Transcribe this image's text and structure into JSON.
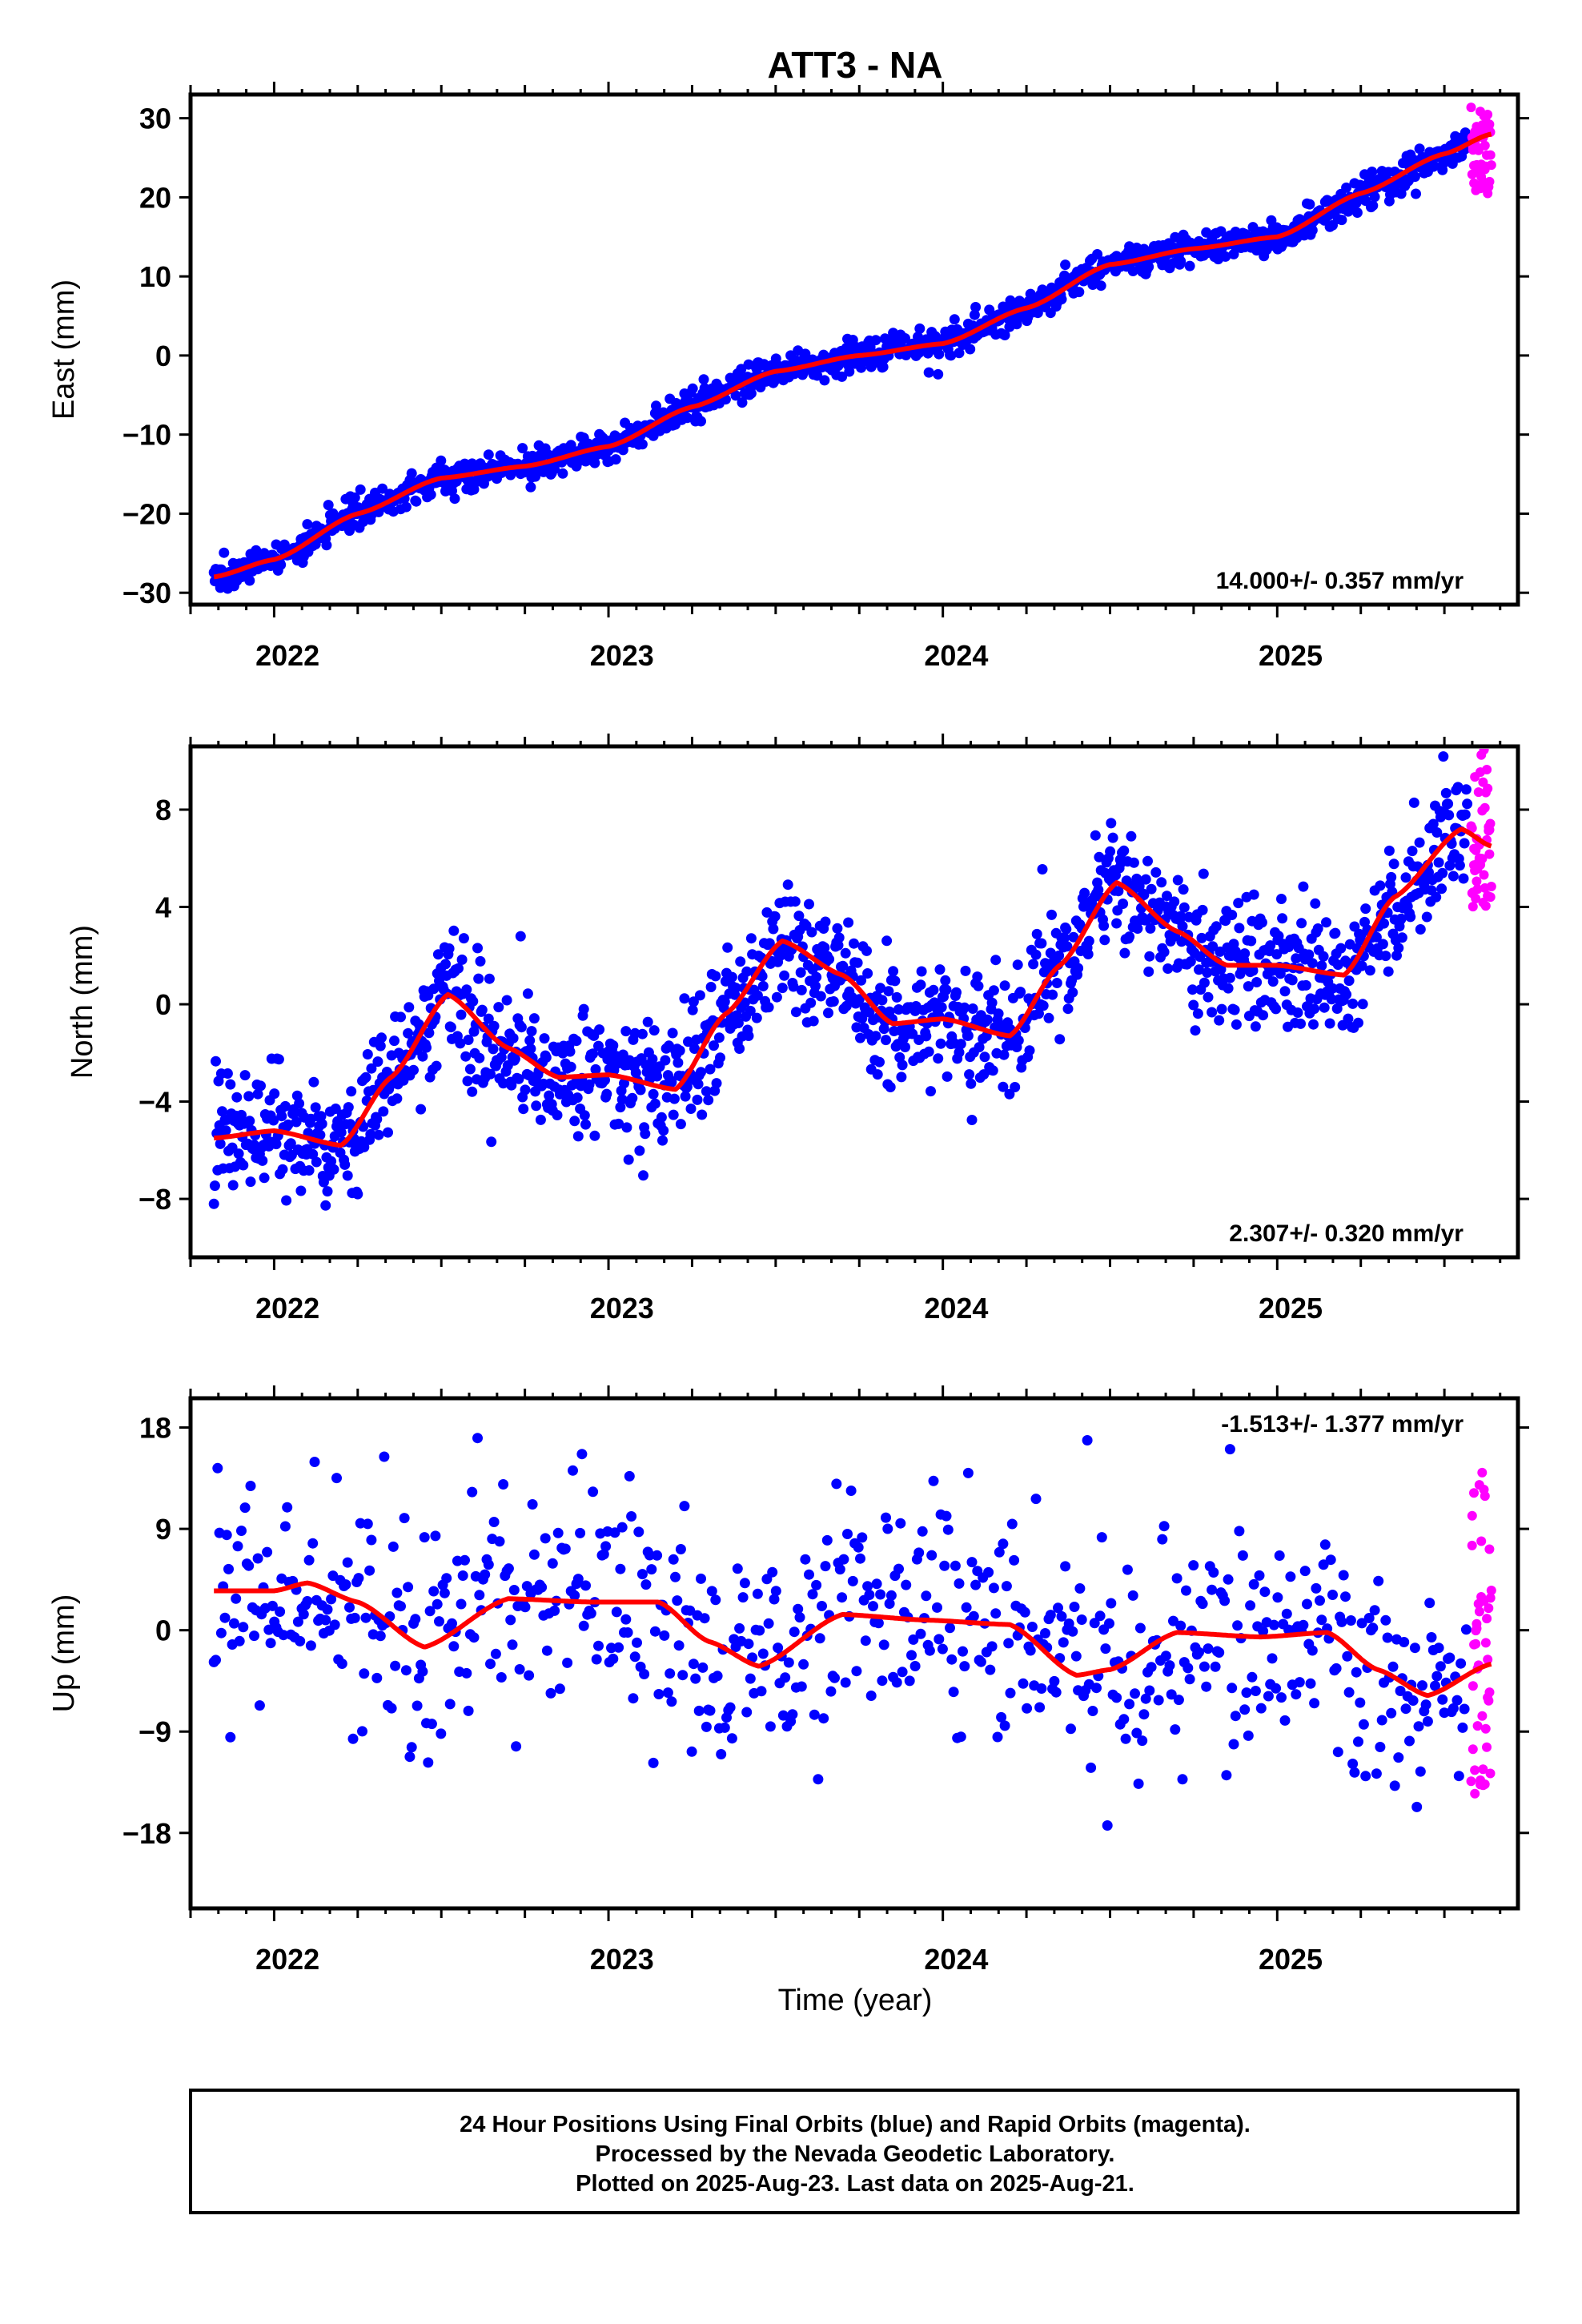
{
  "title": "ATT3 - NA",
  "xlabel": "Time (year)",
  "colors": {
    "final": "#0000ff",
    "rapid": "#ff00ff",
    "fit": "#ff0000",
    "frame": "#000000"
  },
  "footer": {
    "line1": "24 Hour Positions Using Final Orbits (blue) and Rapid Orbits (magenta).",
    "line2": "Processed by the Nevada Geodetic Laboratory.",
    "line3": "Plotted on 2025-Aug-23. Last data on 2025-Aug-21."
  },
  "chart_data": [
    {
      "type": "scatter",
      "component": "east",
      "ylabel": "East (mm)",
      "ylim": [
        -31.5,
        33
      ],
      "xlim": [
        2021.75,
        2025.72
      ],
      "yticks": [
        30,
        20,
        10,
        0,
        -10,
        -20,
        -30
      ],
      "ytick_labels": [
        "30",
        "20",
        "10",
        "0",
        "−10",
        "−20",
        "−30"
      ],
      "xticks": [
        2022,
        2023,
        2024,
        2025
      ],
      "xtick_labels": [
        "2022",
        "2023",
        "2024",
        "2025"
      ],
      "rate": "14.000+/- 0.357 mm/yr",
      "rate_position": "bottom-right",
      "noise_sd_mm": 1.0,
      "series": [
        {
          "name": "Final Orbits (blue)",
          "x_range": [
            2021.82,
            2025.57
          ],
          "sampling": "daily"
        },
        {
          "name": "Rapid Orbits (magenta)",
          "x_range": [
            2025.58,
            2025.64
          ],
          "sampling": "daily",
          "y_range": [
            20,
            32
          ]
        }
      ],
      "fit_curve": {
        "x": [
          2021.82,
          2022.0,
          2022.25,
          2022.5,
          2022.75,
          2023.0,
          2023.25,
          2023.5,
          2023.75,
          2024.0,
          2024.25,
          2024.5,
          2024.75,
          2025.0,
          2025.25,
          2025.5,
          2025.64
        ],
        "y": [
          -28,
          -25.8,
          -20,
          -15.5,
          -14,
          -11.5,
          -6.5,
          -2,
          0,
          1.5,
          6,
          11.5,
          13.5,
          15,
          20.5,
          25.5,
          28
        ]
      }
    },
    {
      "type": "scatter",
      "component": "north",
      "ylabel": "North (mm)",
      "ylim": [
        -10.4,
        10.6
      ],
      "xlim": [
        2021.75,
        2025.72
      ],
      "yticks": [
        8,
        4,
        0,
        -4,
        -8
      ],
      "ytick_labels": [
        "8",
        "4",
        "0",
        "−4",
        "−8"
      ],
      "xticks": [
        2022,
        2023,
        2024,
        2025
      ],
      "xtick_labels": [
        "2022",
        "2023",
        "2024",
        "2025"
      ],
      "rate": "2.307+/- 0.320 mm/yr",
      "rate_position": "bottom-right",
      "noise_sd_mm": 1.3,
      "series": [
        {
          "name": "Final Orbits (blue)",
          "x_range": [
            2021.82,
            2025.57
          ],
          "sampling": "daily"
        },
        {
          "name": "Rapid Orbits (magenta)",
          "x_range": [
            2025.58,
            2025.64
          ],
          "sampling": "daily",
          "y_range": [
            4,
            10.5
          ]
        }
      ],
      "fit_curve": {
        "x": [
          2021.82,
          2022.0,
          2022.2,
          2022.35,
          2022.52,
          2022.7,
          2022.85,
          2023.0,
          2023.2,
          2023.35,
          2023.52,
          2023.7,
          2023.85,
          2024.0,
          2024.2,
          2024.35,
          2024.52,
          2024.7,
          2024.85,
          2025.0,
          2025.2,
          2025.35,
          2025.55,
          2025.64
        ],
        "y": [
          -5.5,
          -5.2,
          -5.8,
          -3,
          0.4,
          -1.8,
          -3,
          -2.9,
          -3.5,
          -0.4,
          2.6,
          1.2,
          -0.8,
          -0.6,
          -1.3,
          1.6,
          5,
          3,
          1.6,
          1.6,
          1.2,
          4.4,
          7.2,
          6.5
        ]
      }
    },
    {
      "type": "scatter",
      "component": "up",
      "ylabel": "Up (mm)",
      "ylim": [
        -24.7,
        20.6
      ],
      "xlim": [
        2021.75,
        2025.72
      ],
      "yticks": [
        18,
        9,
        0,
        -9,
        -18
      ],
      "ytick_labels": [
        "18",
        "9",
        "0",
        "−9",
        "−18"
      ],
      "xticks": [
        2022,
        2023,
        2024,
        2025
      ],
      "xtick_labels": [
        "2022",
        "2023",
        "2024",
        "2025"
      ],
      "rate": "-1.513+/- 1.377 mm/yr",
      "rate_position": "top-right",
      "noise_sd_mm": 5.0,
      "series": [
        {
          "name": "Final Orbits (blue)",
          "x_range": [
            2021.82,
            2025.57
          ],
          "sampling": "every 2 days"
        },
        {
          "name": "Rapid Orbits (magenta)",
          "x_range": [
            2025.58,
            2025.64
          ],
          "sampling": "daily",
          "y_range": [
            -15,
            14
          ]
        }
      ],
      "fit_curve": {
        "x": [
          2021.82,
          2022.0,
          2022.1,
          2022.25,
          2022.45,
          2022.7,
          2022.95,
          2023.15,
          2023.3,
          2023.45,
          2023.7,
          2023.95,
          2024.2,
          2024.4,
          2024.5,
          2024.7,
          2024.95,
          2025.15,
          2025.3,
          2025.45,
          2025.64
        ],
        "y": [
          3.5,
          3.5,
          4.2,
          2.5,
          -1.5,
          2.8,
          2.5,
          2.5,
          -1,
          -3.2,
          1.4,
          0.9,
          0.5,
          -4,
          -3.5,
          -0.2,
          -0.6,
          -0.2,
          -3.5,
          -5.8,
          -3
        ]
      }
    }
  ]
}
